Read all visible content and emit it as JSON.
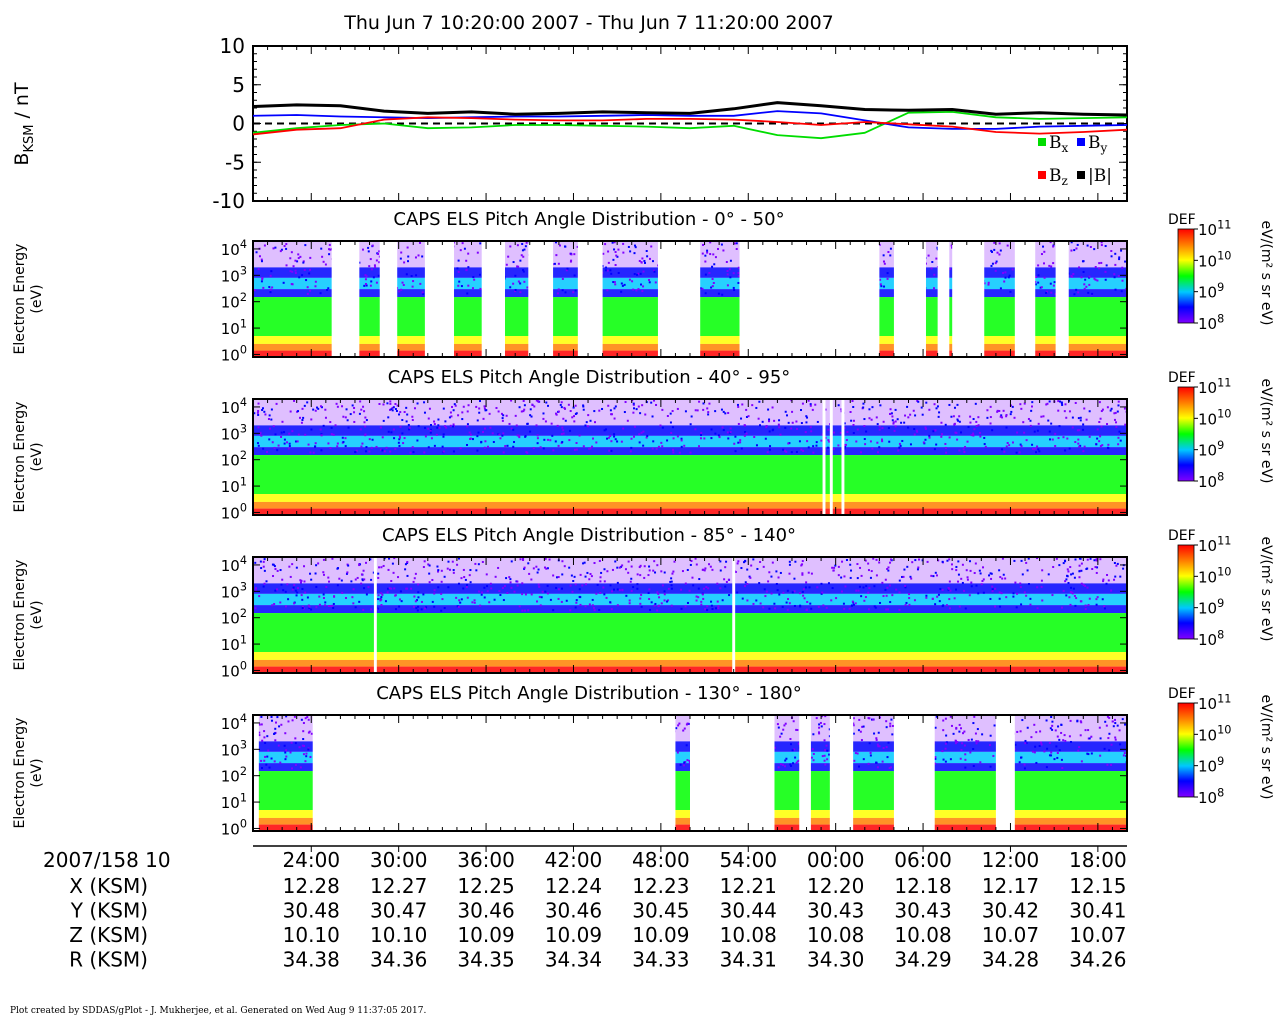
{
  "window": {
    "title": "Thu Jun 7 10:20:00 2007 - Thu Jun 7 11:20:00 2007",
    "footer": "Plot created by SDDAS/gPlot - J. Mukherjee, et al.  Generated on Wed Aug 9 11:37:05 2017."
  },
  "colors": {
    "bx": "#00dd00",
    "by": "#0000ff",
    "bz": "#ff0000",
    "bmag": "#000000",
    "colorscale": [
      "#8000ff",
      "#0000ff",
      "#00c8ff",
      "#00ff00",
      "#ffff00",
      "#ff8000",
      "#ff0000"
    ]
  },
  "chart_data": [
    {
      "type": "line",
      "ylabel_main": "B",
      "ylabel_sub": "KSM",
      "ylabel_unit": " / nT",
      "ylim": [
        -10,
        10
      ],
      "yticks": [
        "10",
        "5",
        "0",
        "-5",
        "-10"
      ],
      "zero_line": "dashed",
      "legend_position": "bottom-right",
      "x_minutes_after_1020": [
        0,
        3,
        6,
        9,
        12,
        15,
        18,
        21,
        24,
        27,
        30,
        33,
        36,
        39,
        42,
        45,
        48,
        51,
        54,
        57,
        60
      ],
      "series": [
        {
          "name": "Bx",
          "name_main": "B",
          "name_sub": "x",
          "color": "#00dd00",
          "values": [
            -1.2,
            -0.6,
            -0.2,
            0.0,
            -0.6,
            -0.5,
            -0.2,
            -0.2,
            -0.3,
            -0.4,
            -0.6,
            -0.3,
            -1.5,
            -1.9,
            -1.2,
            1.4,
            1.5,
            0.8,
            0.6,
            0.7,
            0.8
          ]
        },
        {
          "name": "By",
          "name_main": "B",
          "name_sub": "y",
          "color": "#0000ff",
          "values": [
            1.0,
            1.1,
            0.9,
            0.8,
            0.7,
            0.8,
            0.9,
            0.9,
            1.0,
            1.1,
            1.0,
            1.0,
            1.6,
            1.3,
            0.4,
            -0.5,
            -0.7,
            -0.7,
            -0.4,
            -0.3,
            -0.2
          ]
        },
        {
          "name": "Bz",
          "name_main": "B",
          "name_sub": "z",
          "color": "#ff0000",
          "values": [
            -1.4,
            -0.8,
            -0.6,
            0.5,
            0.8,
            0.7,
            0.5,
            0.4,
            0.4,
            0.6,
            0.6,
            0.5,
            0.2,
            -0.2,
            0.2,
            -0.1,
            -0.4,
            -1.1,
            -1.3,
            -1.1,
            -0.8
          ]
        },
        {
          "name": "|B|",
          "name_main": "|B|",
          "name_sub": "",
          "color": "#000000",
          "values": [
            2.2,
            2.4,
            2.3,
            1.6,
            1.3,
            1.5,
            1.2,
            1.3,
            1.5,
            1.4,
            1.3,
            1.9,
            2.7,
            2.3,
            1.8,
            1.7,
            1.8,
            1.2,
            1.4,
            1.2,
            1.1
          ]
        }
      ]
    },
    {
      "type": "heatmap",
      "title": "CAPS ELS Pitch Angle Distribution - 0° - 50°",
      "ylabel": "Electron Energy",
      "ylabel_unit": "(eV)",
      "yscale": "log",
      "ylim_eV": [
        0.8,
        20000
      ],
      "colorbar_label": "DEF",
      "colorbar_unit": "eV/(m² s sr eV)",
      "colorbar_range": [
        100000000.0,
        100000000000.0
      ],
      "data_gaps_minutes": [
        [
          5.4,
          7.3
        ],
        [
          8.7,
          9.9
        ],
        [
          11.8,
          13.8
        ],
        [
          15.7,
          17.3
        ],
        [
          18.9,
          20.6
        ],
        [
          22.3,
          24.0
        ],
        [
          27.8,
          30.7
        ],
        [
          33.4,
          43.0
        ],
        [
          44.0,
          46.2
        ],
        [
          47.0,
          47.8
        ],
        [
          48.0,
          50.2
        ],
        [
          52.3,
          53.7
        ],
        [
          55.1,
          56.0
        ]
      ]
    },
    {
      "type": "heatmap",
      "title": "CAPS ELS Pitch Angle Distribution - 40° - 95°",
      "ylabel": "Electron Energy",
      "ylabel_unit": "(eV)",
      "yscale": "log",
      "ylim_eV": [
        0.8,
        20000
      ],
      "colorbar_label": "DEF",
      "colorbar_unit": "eV/(m² s sr eV)",
      "colorbar_range": [
        100000000.0,
        100000000000.0
      ],
      "data_gaps_minutes": [
        [
          39.1,
          39.3
        ],
        [
          39.6,
          39.8
        ],
        [
          40.4,
          40.6
        ]
      ]
    },
    {
      "type": "heatmap",
      "title": "CAPS ELS Pitch Angle Distribution - 85° - 140°",
      "ylabel": "Electron Energy",
      "ylabel_unit": "(eV)",
      "yscale": "log",
      "ylim_eV": [
        0.8,
        20000
      ],
      "colorbar_label": "DEF",
      "colorbar_unit": "eV/(m² s sr eV)",
      "colorbar_range": [
        100000000.0,
        100000000000.0
      ],
      "data_gaps_minutes": [
        [
          8.3,
          8.5
        ],
        [
          32.9,
          33.1
        ]
      ]
    },
    {
      "type": "heatmap",
      "title": "CAPS ELS Pitch Angle Distribution - 130° - 180°",
      "ylabel": "Electron Energy",
      "ylabel_unit": "(eV)",
      "yscale": "log",
      "ylim_eV": [
        0.8,
        20000
      ],
      "colorbar_label": "DEF",
      "colorbar_unit": "eV/(m² s sr eV)",
      "colorbar_range": [
        100000000.0,
        100000000000.0
      ],
      "data_gaps_minutes": [
        [
          0.0,
          0.4
        ],
        [
          4.1,
          29.0
        ],
        [
          30.0,
          35.8
        ],
        [
          37.5,
          38.3
        ],
        [
          39.6,
          41.2
        ],
        [
          44.0,
          46.8
        ],
        [
          51.0,
          52.3
        ]
      ]
    }
  ],
  "energy_ticks": [
    {
      "b": "10",
      "e": "4"
    },
    {
      "b": "10",
      "e": "3"
    },
    {
      "b": "10",
      "e": "2"
    },
    {
      "b": "10",
      "e": "1"
    },
    {
      "b": "10",
      "e": "0"
    }
  ],
  "colorbar_ticks": [
    {
      "b": "10",
      "e": "11"
    },
    {
      "b": "10",
      "e": "10"
    },
    {
      "b": "10",
      "e": "9"
    },
    {
      "b": "10",
      "e": "8"
    }
  ],
  "time_axis": {
    "start_label": "2007/158 10",
    "ticks_minutes_after_1020": [
      4,
      10,
      16,
      22,
      28,
      34,
      40,
      46,
      52,
      58
    ],
    "tick_labels": [
      "24:00",
      "30:00",
      "36:00",
      "42:00",
      "48:00",
      "54:00",
      "00:00",
      "06:00",
      "12:00",
      "18:00"
    ]
  },
  "ephemeris": [
    {
      "label": "X (KSM)",
      "values": [
        "12.28",
        "12.27",
        "12.25",
        "12.24",
        "12.23",
        "12.21",
        "12.20",
        "12.18",
        "12.17",
        "12.15"
      ]
    },
    {
      "label": "Y (KSM)",
      "values": [
        "30.48",
        "30.47",
        "30.46",
        "30.46",
        "30.45",
        "30.44",
        "30.43",
        "30.43",
        "30.42",
        "30.41"
      ]
    },
    {
      "label": "Z (KSM)",
      "values": [
        "10.10",
        "10.10",
        "10.09",
        "10.09",
        "10.09",
        "10.08",
        "10.08",
        "10.08",
        "10.07",
        "10.07"
      ]
    },
    {
      "label": "R (KSM)",
      "values": [
        "34.38",
        "34.36",
        "34.35",
        "34.34",
        "34.33",
        "34.31",
        "34.30",
        "34.29",
        "34.28",
        "34.26"
      ]
    }
  ]
}
